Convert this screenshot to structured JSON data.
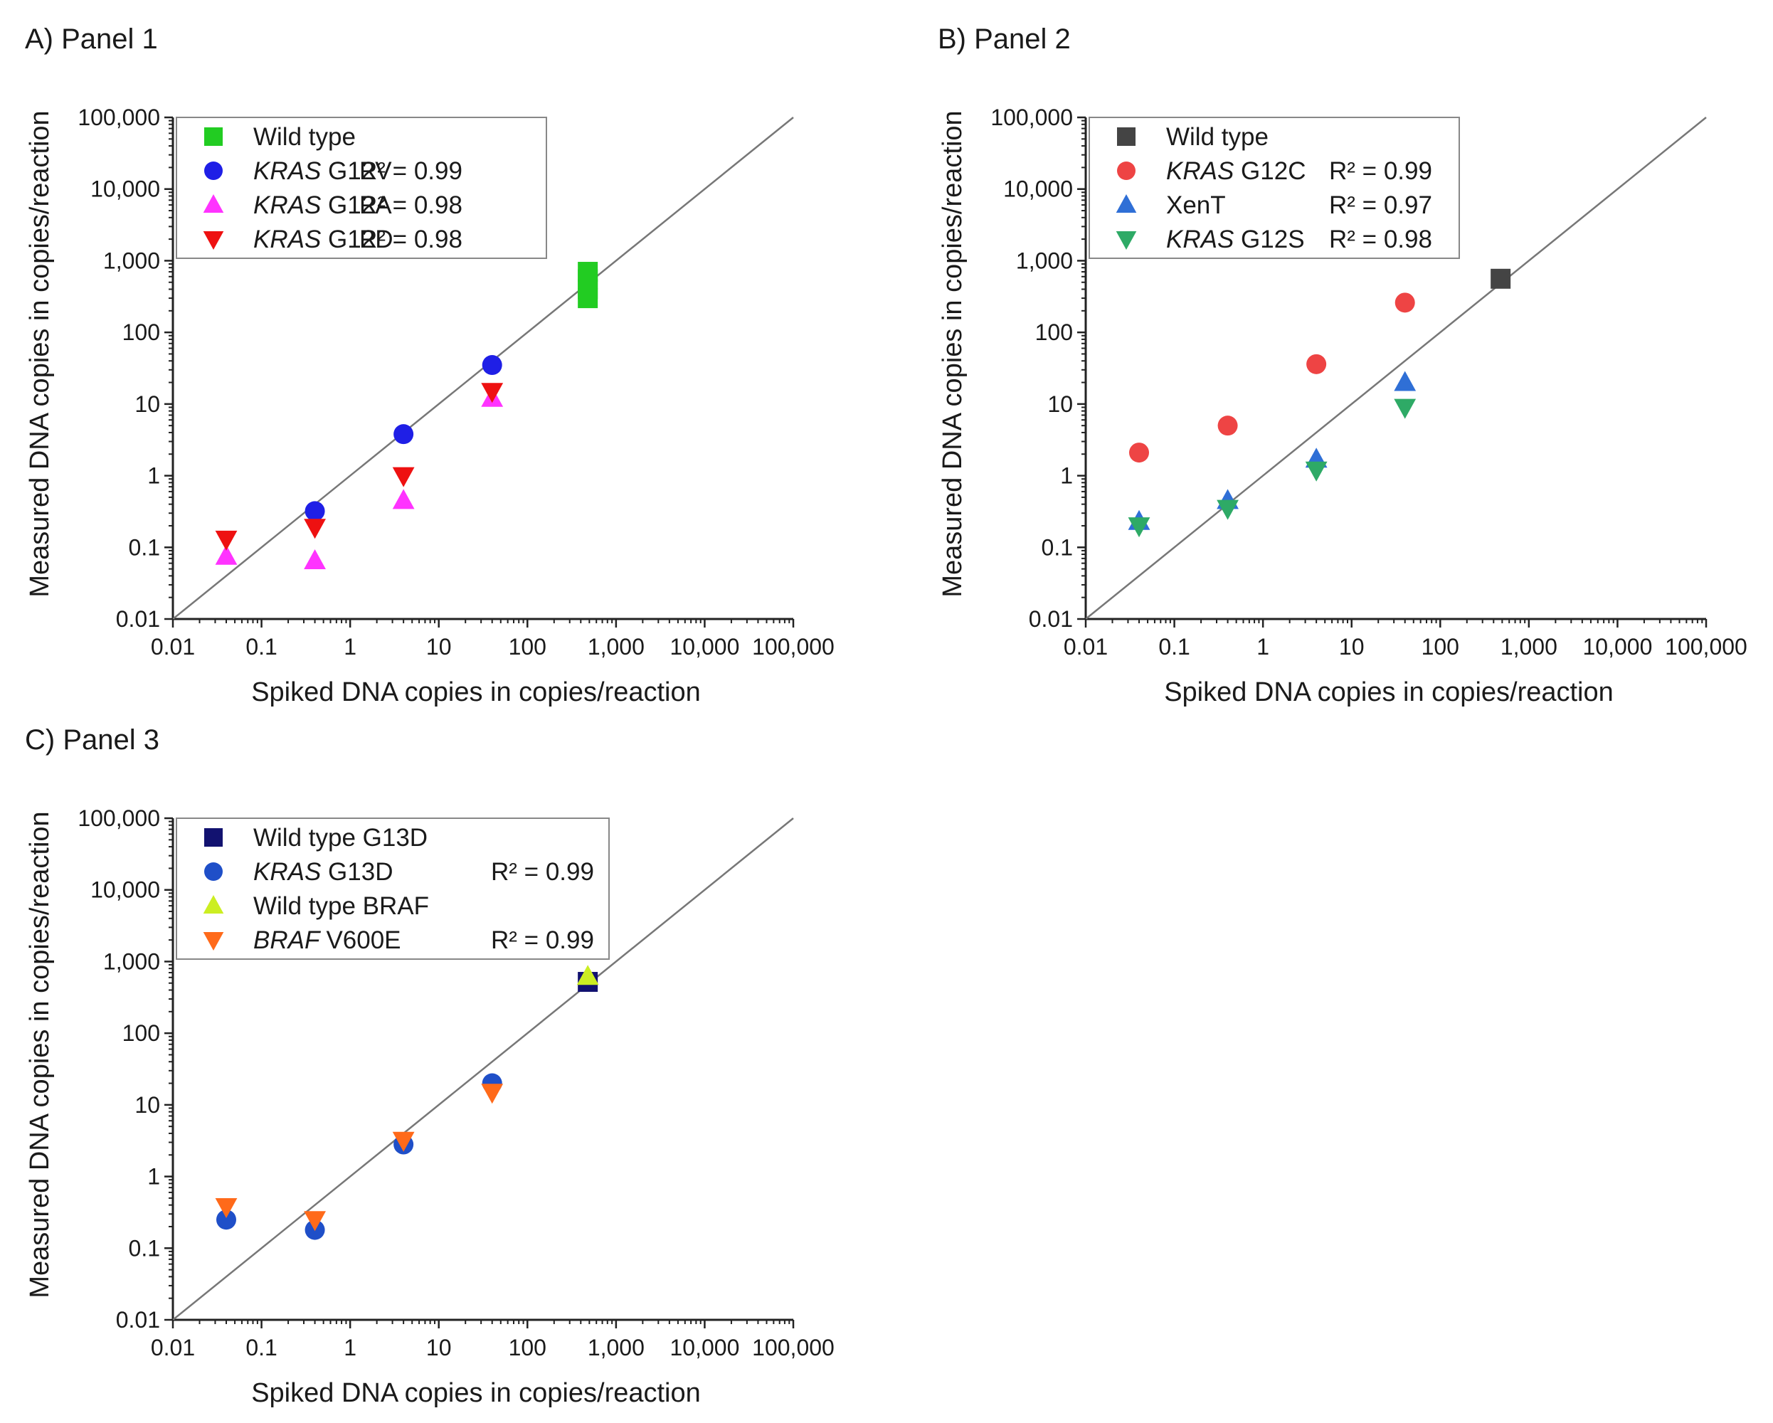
{
  "figure": {
    "colors": {
      "green": "#22cc22",
      "blue": "#1f1fe6",
      "magenta": "#ff33ff",
      "red": "#ee1111",
      "dark_gray": "#444444",
      "coral": "#ee4444",
      "azure": "#2f6fd6",
      "teal_green": "#2eaa66",
      "navy": "#121270",
      "royal_blue": "#1f4fc8",
      "lime": "#ccee22",
      "orange": "#ff6a1a"
    }
  },
  "chart_data": [
    {
      "panel_label": "A) Panel 1",
      "type": "scatter",
      "xlabel": "Spiked DNA copies in copies/reaction",
      "ylabel": "Measured DNA copies in copies/reaction",
      "xscale": "log",
      "yscale": "log",
      "xlim": [
        0.01,
        100000
      ],
      "ylim": [
        0.01,
        100000
      ],
      "x_tick_labels": [
        "0.01",
        "0.1",
        "1",
        "10",
        "100",
        "1,000",
        "10,000",
        "100,000"
      ],
      "y_tick_labels": [
        "0.01",
        "0.1",
        "1",
        "10",
        "100",
        "1,000",
        "10,000",
        "100,000"
      ],
      "reference_line": "y = x",
      "legend_position": "top-left",
      "series": [
        {
          "name": "Wild type",
          "gene": "",
          "marker": "square",
          "color": "#22cc22",
          "r2": "",
          "points": [
            [
              480,
              300
            ],
            [
              480,
              400
            ],
            [
              480,
              550
            ],
            [
              480,
              700
            ]
          ]
        },
        {
          "name": "G12V",
          "gene": "KRAS",
          "marker": "circle",
          "color": "#1f1fe6",
          "r2": "R² = 0.99",
          "points": [
            [
              0.4,
              0.32
            ],
            [
              4,
              3.8
            ],
            [
              40,
              35
            ]
          ]
        },
        {
          "name": "G12A",
          "gene": "KRAS",
          "marker": "triangle-up",
          "color": "#ff33ff",
          "r2": "R² = 0.98",
          "points": [
            [
              0.04,
              0.075
            ],
            [
              0.4,
              0.065
            ],
            [
              4,
              0.45
            ],
            [
              40,
              12
            ]
          ]
        },
        {
          "name": "G12D",
          "gene": "KRAS",
          "marker": "triangle-down",
          "color": "#ee1111",
          "r2": "R² = 0.98",
          "points": [
            [
              0.04,
              0.13
            ],
            [
              0.4,
              0.19
            ],
            [
              4,
              1.0
            ],
            [
              40,
              15
            ]
          ]
        }
      ]
    },
    {
      "panel_label": "B) Panel 2",
      "type": "scatter",
      "xlabel": "Spiked DNA copies in copies/reaction",
      "ylabel": "Measured DNA copies in copies/reaction",
      "xscale": "log",
      "yscale": "log",
      "xlim": [
        0.01,
        100000
      ],
      "ylim": [
        0.01,
        100000
      ],
      "x_tick_labels": [
        "0.01",
        "0.1",
        "1",
        "10",
        "100",
        "1,000",
        "10,000",
        "100,000"
      ],
      "y_tick_labels": [
        "0.01",
        "0.1",
        "1",
        "10",
        "100",
        "1,000",
        "10,000",
        "100,000"
      ],
      "reference_line": "y = x",
      "legend_position": "top-left",
      "series": [
        {
          "name": "Wild type",
          "gene": "",
          "marker": "square",
          "color": "#444444",
          "r2": "",
          "points": [
            [
              480,
              560
            ]
          ]
        },
        {
          "name": "G12C",
          "gene": "KRAS",
          "marker": "circle",
          "color": "#ee4444",
          "r2": "R² = 0.99",
          "points": [
            [
              0.04,
              2.1
            ],
            [
              0.4,
              5.0
            ],
            [
              4,
              36
            ],
            [
              40,
              260
            ]
          ]
        },
        {
          "name": "XenT",
          "gene": "",
          "marker": "triangle-up",
          "color": "#2f6fd6",
          "r2": "R² = 0.97",
          "points": [
            [
              0.04,
              0.23
            ],
            [
              0.4,
              0.45
            ],
            [
              4,
              1.7
            ],
            [
              40,
              20
            ]
          ]
        },
        {
          "name": "G12S",
          "gene": "KRAS",
          "marker": "triangle-down",
          "color": "#2eaa66",
          "r2": "R² = 0.98",
          "points": [
            [
              0.04,
              0.2
            ],
            [
              0.4,
              0.35
            ],
            [
              4,
              1.2
            ],
            [
              40,
              9
            ]
          ]
        }
      ]
    },
    {
      "panel_label": "C) Panel 3",
      "type": "scatter",
      "xlabel": "Spiked DNA copies in copies/reaction",
      "ylabel": "Measured DNA copies in copies/reaction",
      "xscale": "log",
      "yscale": "log",
      "xlim": [
        0.01,
        100000
      ],
      "ylim": [
        0.01,
        100000
      ],
      "x_tick_labels": [
        "0.01",
        "0.1",
        "1",
        "10",
        "100",
        "1,000",
        "10,000",
        "100,000"
      ],
      "y_tick_labels": [
        "0.01",
        "0.1",
        "1",
        "10",
        "100",
        "1,000",
        "10,000",
        "100,000"
      ],
      "reference_line": "y = x",
      "legend_position": "top-left",
      "series": [
        {
          "name": "Wild type G13D",
          "gene": "",
          "marker": "square",
          "color": "#121270",
          "r2": "",
          "points": [
            [
              480,
              520
            ]
          ]
        },
        {
          "name": "G13D",
          "gene": "KRAS",
          "marker": "circle",
          "color": "#1f4fc8",
          "r2": "R² = 0.99",
          "points": [
            [
              0.04,
              0.25
            ],
            [
              0.4,
              0.18
            ],
            [
              4,
              2.8
            ],
            [
              40,
              20
            ]
          ]
        },
        {
          "name": "Wild type BRAF",
          "gene": "",
          "marker": "triangle-up",
          "color": "#ccee22",
          "r2": "",
          "points": [
            [
              480,
              620
            ]
          ]
        },
        {
          "name": "V600E",
          "gene": "BRAF",
          "marker": "triangle-down",
          "color": "#ff6a1a",
          "r2": "R² = 0.99",
          "points": [
            [
              0.04,
              0.38
            ],
            [
              0.4,
              0.25
            ],
            [
              4,
              3.2
            ],
            [
              40,
              15
            ]
          ]
        }
      ]
    }
  ]
}
